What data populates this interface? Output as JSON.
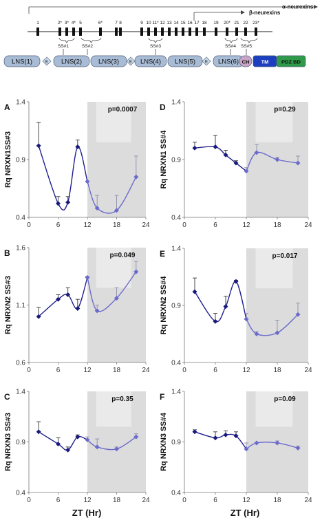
{
  "colors": {
    "line_light": "#1f1f8f",
    "line_dark": "#6b6bcc",
    "marker": "#1a1a7a",
    "shade_dark": "#dcdcdc",
    "shade_light": "#efefef",
    "domain_lns": "#a9bcd6",
    "domain_egf": "#c8d8e4",
    "domain_tm": "#1c3fbf",
    "domain_pdz": "#2f9a4a",
    "domain_ch": "#c9a4c9"
  },
  "gene_map": {
    "alpha_label": "α-neurexins",
    "beta_label": "β-neurexins",
    "exons": [
      "1",
      "2*",
      "3*",
      "4*",
      "5",
      "6*",
      "7",
      "8",
      "9",
      "10",
      "11*",
      "12",
      "13",
      "14",
      "15",
      "16",
      "17",
      "18",
      "19",
      "20*",
      "21",
      "22",
      "23*"
    ],
    "splice_sites": [
      "SS#1",
      "SS#2",
      "SS#3",
      "SS#4",
      "SS#5"
    ],
    "domains": [
      "LNS(1)",
      "E",
      "LNS(2)",
      "LNS(3)",
      "E",
      "LNS(4)",
      "LNS(5)",
      "E",
      "LNS(6)",
      "CH",
      "TM",
      "PDZ BD"
    ]
  },
  "x_axis_title": "ZT (Hr)",
  "x_ticks": [
    "0",
    "6",
    "12",
    "18",
    "24"
  ],
  "chart_data": [
    {
      "letter": "A",
      "type": "line",
      "ylabel": "Rq NRXN1SS#3",
      "pvalue": "p=0.0007",
      "ylim": [
        0.4,
        1.4
      ],
      "y_ticks": [
        "1.4",
        "0.9",
        "0.4"
      ],
      "xlim": [
        0,
        24
      ],
      "x": [
        2,
        6,
        8,
        10,
        12,
        14,
        18,
        22
      ],
      "y": [
        1.02,
        0.52,
        0.53,
        1.01,
        0.71,
        0.48,
        0.46,
        0.75
      ],
      "err": [
        0.2,
        0.06,
        0.05,
        0.06,
        0.0,
        0.11,
        0.13,
        0.18
      ],
      "shade_start": 12
    },
    {
      "letter": "B",
      "type": "line",
      "ylabel": "Rq NRXN2 SS#3",
      "pvalue": "p=0.049",
      "ylim": [
        0.6,
        1.6
      ],
      "y_ticks": [
        "1.6",
        "1.1",
        "0.6"
      ],
      "xlim": [
        0,
        24
      ],
      "x": [
        2,
        6,
        8,
        10,
        12,
        14,
        18,
        22
      ],
      "y": [
        1.0,
        1.15,
        1.19,
        1.07,
        1.34,
        1.05,
        1.16,
        1.39
      ],
      "err": [
        0.08,
        0.04,
        0.06,
        0.08,
        0.01,
        0.05,
        0.09,
        0.09
      ],
      "shade_start": 12
    },
    {
      "letter": "C",
      "type": "line",
      "ylabel": "Rq NRXN3 SS#3",
      "pvalue": "p=0.35",
      "ylim": [
        0.4,
        1.4
      ],
      "y_ticks": [
        "1.4",
        "0.9",
        "0.4"
      ],
      "xlim": [
        0,
        24
      ],
      "x": [
        2,
        6,
        8,
        10,
        12,
        14,
        18,
        22
      ],
      "y": [
        1.0,
        0.88,
        0.82,
        0.95,
        0.92,
        0.85,
        0.83,
        0.95
      ],
      "err": [
        0.1,
        0.06,
        0.03,
        0.02,
        0.03,
        0.08,
        0.02,
        0.03
      ],
      "shade_start": 12
    },
    {
      "letter": "D",
      "type": "line",
      "ylabel": "Rq NRXN1 SS#4",
      "pvalue": "p=0.29",
      "ylim": [
        0.4,
        1.4
      ],
      "y_ticks": [
        "1.4",
        "0.9",
        "0.4"
      ],
      "xlim": [
        0,
        24
      ],
      "x": [
        2,
        6,
        8,
        10,
        12,
        14,
        18,
        22
      ],
      "y": [
        1.0,
        1.01,
        0.94,
        0.87,
        0.8,
        0.96,
        0.9,
        0.87
      ],
      "err": [
        0.05,
        0.1,
        0.04,
        0.02,
        0.03,
        0.07,
        0.02,
        0.06
      ],
      "shade_start": 12
    },
    {
      "letter": "E",
      "type": "line",
      "ylabel": "Rq NRXN2  SS#4",
      "pvalue": "p=0.017",
      "ylim": [
        0.4,
        1.4
      ],
      "y_ticks": [
        "1.4",
        "0.9",
        "0.4"
      ],
      "xlim": [
        0,
        24
      ],
      "x": [
        2,
        6,
        8,
        10,
        12,
        14,
        18,
        22
      ],
      "y": [
        1.02,
        0.76,
        0.89,
        1.11,
        0.78,
        0.65,
        0.66,
        0.82
      ],
      "err": [
        0.12,
        0.07,
        0.09,
        0.01,
        0.05,
        0.02,
        0.11,
        0.1
      ],
      "shade_start": 12
    },
    {
      "letter": "F",
      "type": "line",
      "ylabel": "Rq NRXN3 SS#4",
      "pvalue": "p=0.09",
      "ylim": [
        0.4,
        1.4
      ],
      "y_ticks": [
        "1.4",
        "0.9",
        "0.4"
      ],
      "xlim": [
        0,
        24
      ],
      "x": [
        2,
        6,
        8,
        10,
        12,
        14,
        18,
        22
      ],
      "y": [
        1.0,
        0.94,
        0.97,
        0.96,
        0.83,
        0.89,
        0.89,
        0.84
      ],
      "err": [
        0.02,
        0.06,
        0.04,
        0.04,
        0.06,
        0.0,
        0.02,
        0.02
      ],
      "shade_start": 12
    }
  ]
}
